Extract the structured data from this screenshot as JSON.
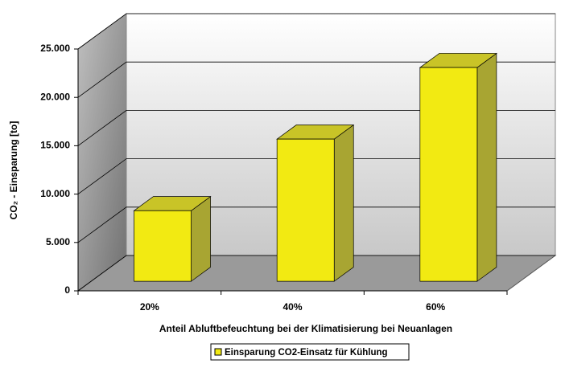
{
  "chart_data": {
    "type": "bar3d",
    "y_label": "CO₂ - Einsparung [to]",
    "x_label": "Anteil Abluftbefeuchtung bei der Klimatisierung bei Neuanlagen",
    "categories": [
      "20%",
      "40%",
      "60%"
    ],
    "series": [
      {
        "name": "Einsparung CO2-Einsatz für Kühlung",
        "color": "#f2ea12",
        "values": [
          7300,
          14700,
          22100
        ]
      }
    ],
    "ylim": [
      0,
      25000
    ],
    "yticks": [
      0,
      {
        "value": 5000,
        "label": "5.000"
      },
      {
        "value": 10000,
        "label": "10.000"
      },
      {
        "value": 15000,
        "label": "15.000"
      },
      {
        "value": 20000,
        "label": "20.000"
      },
      {
        "value": 25000,
        "label": "25.000"
      }
    ],
    "grid": true,
    "legend": "bottom"
  }
}
